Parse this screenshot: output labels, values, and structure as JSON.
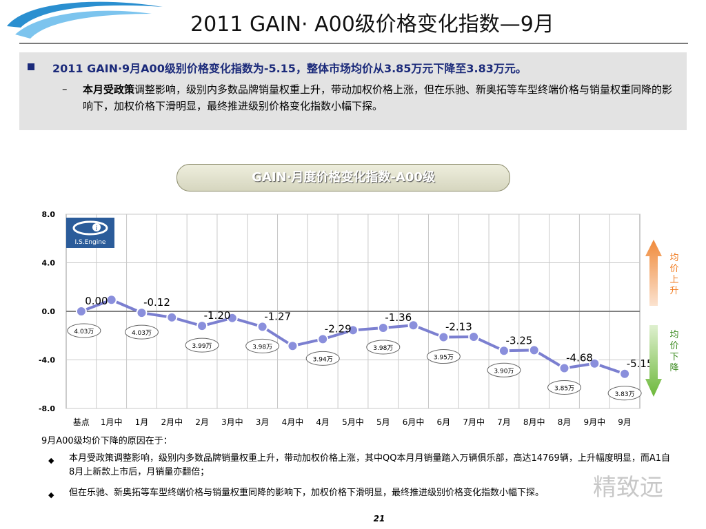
{
  "header": {
    "title": "2011 GAIN· A00级价格变化指数—9月"
  },
  "summary": {
    "main": "2011 GAIN·9月A00级别价格变化指数为-5.15，整体市场均价从3.85万元下降至3.83万元。",
    "sub_dash": "–",
    "sub_bold": "本月受政策",
    "sub_rest": "调整影响，级别内多数品牌销量权重上升，带动加权价格上涨，但在乐驰、新奥拓等车型终端价格与销量权重同降的影响下，加权价格下滑明显，最终推进级别价格变化指数小幅下探。"
  },
  "chart_title": "GAIN·月度价格变化指数-A00级",
  "logo_text": "I.S.Engine",
  "arrows": {
    "up_label": "均价上升",
    "down_label": "均价下降",
    "up_color": "#f07a1e",
    "down_color": "#6cb83a"
  },
  "chart_data": {
    "type": "line",
    "title": "GAIN·月度价格变化指数-A00级",
    "categories": [
      "基点",
      "1月中",
      "1月",
      "2月中",
      "2月",
      "3月中",
      "3月",
      "4月中",
      "4月",
      "5月中",
      "5月",
      "6月中",
      "6月",
      "7月中",
      "7月",
      "8月中",
      "8月",
      "9月中",
      "9月"
    ],
    "series": [
      {
        "values": [
          0.0,
          0.95,
          -0.12,
          -0.5,
          -1.2,
          -0.55,
          -1.27,
          -2.85,
          -2.29,
          -1.55,
          -1.36,
          -1.15,
          -2.13,
          -2.1,
          -3.25,
          -3.2,
          -4.68,
          -4.3,
          -5.15
        ],
        "color": "#7b7fd0"
      }
    ],
    "value_labels": [
      {
        "index": 0,
        "text": "0.00"
      },
      {
        "index": 2,
        "text": "-0.12"
      },
      {
        "index": 4,
        "text": "-1.20"
      },
      {
        "index": 6,
        "text": "-1.27"
      },
      {
        "index": 8,
        "text": "-2.29"
      },
      {
        "index": 10,
        "text": "-1.36"
      },
      {
        "index": 12,
        "text": "-2.13"
      },
      {
        "index": 14,
        "text": "-3.25"
      },
      {
        "index": 16,
        "text": "-4.68"
      },
      {
        "index": 18,
        "text": "-5.15"
      }
    ],
    "price_labels": [
      {
        "index": 0,
        "text": "4.03万"
      },
      {
        "index": 2,
        "text": "4.03万"
      },
      {
        "index": 4,
        "text": "3.99万"
      },
      {
        "index": 6,
        "text": "3.98万"
      },
      {
        "index": 8,
        "text": "3.94万"
      },
      {
        "index": 10,
        "text": "3.98万"
      },
      {
        "index": 12,
        "text": "3.95万"
      },
      {
        "index": 14,
        "text": "3.90万"
      },
      {
        "index": 16,
        "text": "3.85万"
      },
      {
        "index": 18,
        "text": "3.83万"
      }
    ],
    "yticks": [
      "8.0",
      "4.0",
      "0.0",
      "-4.0",
      "-8.0"
    ],
    "ylim": [
      -8,
      8
    ],
    "grid": true
  },
  "reasons": {
    "heading": "9月A00级均价下降的原因在于：",
    "items": [
      {
        "bullet": "◆",
        "text": "本月受政策调整影响，级别内多数品牌销量权重上升，带动加权价格上涨，其中QQ本月月销量踏入万辆俱乐部，高达14769辆，上升幅度明显，而A1自8月上新款上市后，月销量亦翻倍；"
      },
      {
        "bullet": "◆",
        "text": "但在乐驰、新奥拓等车型终端价格与销量权重同降的影响下，加权价格下滑明显，最终推进级别价格变化指数小幅下探。"
      }
    ]
  },
  "page_number": "21",
  "watermark": "精致远"
}
